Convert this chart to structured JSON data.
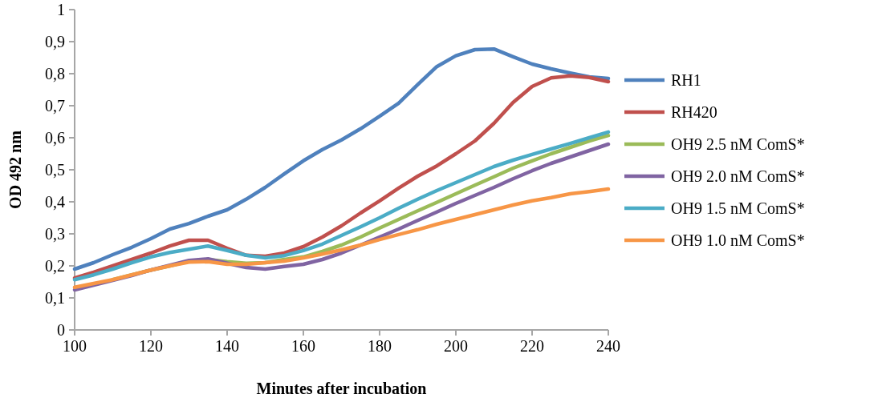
{
  "chart_data": {
    "type": "line",
    "xlabel": "Minutes after incubation",
    "ylabel": "OD 492 nm",
    "x": [
      100,
      105,
      110,
      115,
      120,
      125,
      130,
      135,
      140,
      145,
      150,
      155,
      160,
      165,
      170,
      175,
      180,
      185,
      190,
      195,
      200,
      205,
      210,
      215,
      220,
      225,
      230,
      235,
      240
    ],
    "xlim": [
      100,
      240
    ],
    "xticks": [
      100,
      120,
      140,
      160,
      180,
      200,
      220,
      240
    ],
    "ylim": [
      0,
      1
    ],
    "yticks": [
      0,
      {
        "value": 0.1,
        "label": "0,1"
      },
      {
        "value": 0.2,
        "label": "0,2"
      },
      {
        "value": 0.3,
        "label": "0,3"
      },
      {
        "value": 0.4,
        "label": "0,4"
      },
      {
        "value": 0.5,
        "label": "0,5"
      },
      {
        "value": 0.6,
        "label": "0,6"
      },
      {
        "value": 0.7,
        "label": "0,7"
      },
      {
        "value": 0.8,
        "label": "0,8"
      },
      {
        "value": 0.9,
        "label": "0,9"
      },
      1
    ],
    "grid": false,
    "legend": "right",
    "marker": "none",
    "line_style": "solid",
    "series": [
      {
        "name": "RH1",
        "color": "#4f81bd",
        "values": [
          0.19,
          0.21,
          0.235,
          0.258,
          0.285,
          0.315,
          0.332,
          0.355,
          0.375,
          0.408,
          0.445,
          0.487,
          0.528,
          0.563,
          0.593,
          0.628,
          0.667,
          0.708,
          0.766,
          0.822,
          0.856,
          0.875,
          0.877,
          0.853,
          0.83,
          0.815,
          0.802,
          0.79,
          0.785
        ]
      },
      {
        "name": "RH420",
        "color": "#c0504d",
        "values": [
          0.162,
          0.18,
          0.2,
          0.22,
          0.24,
          0.262,
          0.28,
          0.28,
          0.255,
          0.233,
          0.23,
          0.24,
          0.26,
          0.29,
          0.325,
          0.365,
          0.403,
          0.443,
          0.48,
          0.512,
          0.55,
          0.59,
          0.645,
          0.71,
          0.76,
          0.787,
          0.793,
          0.788,
          0.775
        ]
      },
      {
        "name": "OH9 2.5 nM ComS*",
        "color": "#9bbb59",
        "values": [
          null,
          null,
          0.157,
          0.172,
          0.187,
          0.2,
          0.215,
          0.22,
          0.213,
          0.208,
          0.21,
          0.22,
          0.228,
          0.245,
          0.265,
          0.29,
          0.318,
          0.345,
          0.372,
          0.398,
          0.425,
          0.452,
          0.478,
          0.505,
          0.528,
          0.55,
          0.57,
          0.59,
          0.607
        ]
      },
      {
        "name": "OH9 2.0 nM ComS*",
        "color": "#8064a2",
        "values": [
          0.125,
          0.14,
          0.155,
          0.17,
          0.187,
          0.202,
          0.217,
          0.222,
          0.208,
          0.195,
          0.19,
          0.198,
          0.205,
          0.22,
          0.24,
          0.265,
          0.29,
          0.315,
          0.342,
          0.368,
          0.395,
          0.42,
          0.445,
          0.472,
          0.497,
          0.52,
          0.54,
          0.56,
          0.58
        ]
      },
      {
        "name": "OH9 1.5 nM ComS*",
        "color": "#4bacc6",
        "values": [
          0.157,
          0.172,
          0.19,
          0.21,
          0.228,
          0.242,
          0.252,
          0.262,
          0.248,
          0.233,
          0.225,
          0.232,
          0.248,
          0.268,
          0.295,
          0.322,
          0.35,
          0.38,
          0.408,
          0.435,
          0.46,
          0.485,
          0.51,
          0.53,
          0.548,
          0.565,
          0.582,
          0.6,
          0.618
        ]
      },
      {
        "name": "OH9 1.0 nM ComS*",
        "color": "#f79646",
        "values": [
          0.133,
          0.145,
          0.157,
          0.172,
          0.187,
          0.2,
          0.212,
          0.213,
          0.205,
          0.205,
          0.21,
          0.215,
          0.225,
          0.237,
          0.25,
          0.265,
          0.282,
          0.298,
          0.313,
          0.33,
          0.345,
          0.36,
          0.375,
          0.39,
          0.403,
          0.413,
          0.425,
          0.432,
          0.44
        ]
      }
    ]
  }
}
